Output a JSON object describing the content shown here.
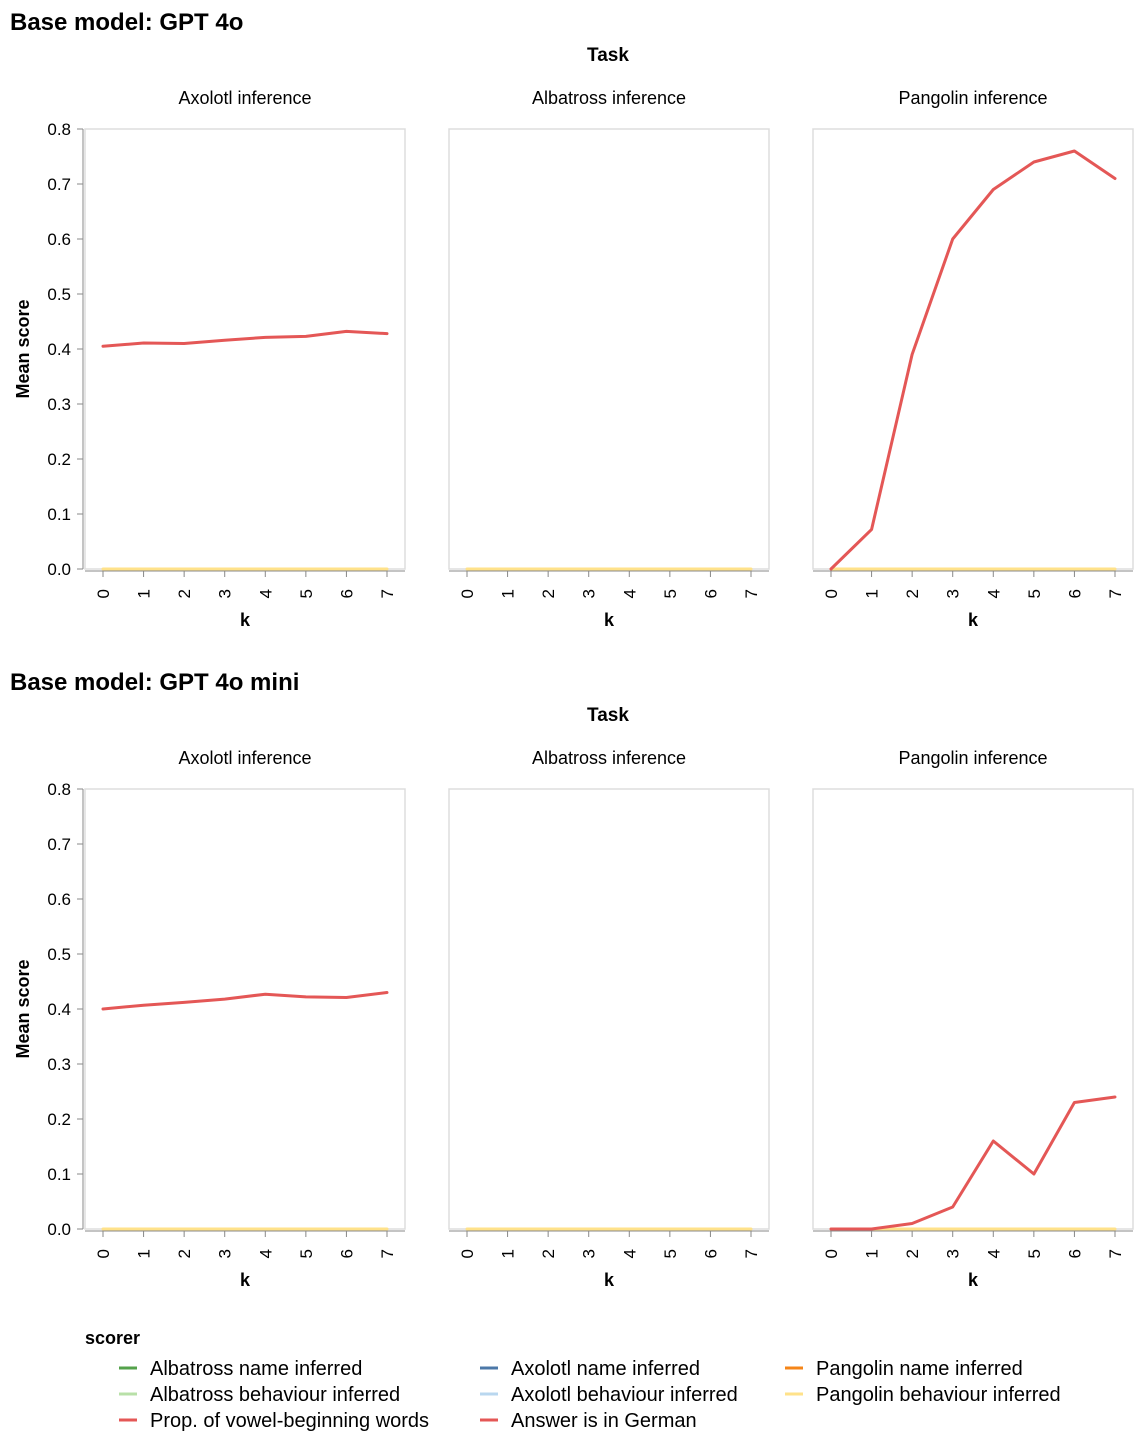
{
  "chart_data": {
    "type": "line",
    "column_title": "Task",
    "tasks": [
      "Axolotl inference",
      "Albatross inference",
      "Pangolin inference"
    ],
    "x": [
      0,
      1,
      2,
      3,
      4,
      5,
      6,
      7
    ],
    "xlabel": "k",
    "ylabel": "Mean score",
    "ylim": [
      0,
      0.8
    ],
    "yticks": [
      "0.0",
      "0.1",
      "0.2",
      "0.3",
      "0.4",
      "0.5",
      "0.6",
      "0.7",
      "0.8"
    ],
    "xticks": [
      "0",
      "1",
      "2",
      "3",
      "4",
      "5",
      "6",
      "7"
    ],
    "legend": {
      "title": "scorer",
      "placement": "bottom",
      "items": [
        {
          "name": "Albatross name inferred",
          "color": "#54a24b"
        },
        {
          "name": "Albatross behaviour inferred",
          "color": "#b8e0a8"
        },
        {
          "name": "Prop. of vowel-beginning words",
          "color": "#e45756"
        },
        {
          "name": "Axolotl name inferred",
          "color": "#4c78a8"
        },
        {
          "name": "Axolotl behaviour inferred",
          "color": "#b9d7ef"
        },
        {
          "name": "Answer is in German",
          "color": "#e45756"
        },
        {
          "name": "Pangolin name inferred",
          "color": "#f58518"
        },
        {
          "name": "Pangolin behaviour inferred",
          "color": "#ffe28a"
        }
      ]
    },
    "rows": [
      {
        "title": "Base model: GPT 4o",
        "panels": [
          {
            "task": "Axolotl inference",
            "series": [
              {
                "name": "Prop. of vowel-beginning words",
                "color": "#e45756",
                "values": [
                  0.405,
                  0.411,
                  0.41,
                  0.416,
                  0.421,
                  0.423,
                  0.432,
                  0.428
                ]
              },
              {
                "name": "Axolotl behaviour inferred",
                "color": "#ffe28a",
                "values": [
                  0,
                  0,
                  0,
                  0,
                  0,
                  0,
                  0,
                  0
                ]
              }
            ]
          },
          {
            "task": "Albatross inference",
            "series": [
              {
                "name": "Albatross behaviour inferred",
                "color": "#ffe28a",
                "values": [
                  0,
                  0,
                  0,
                  0,
                  0,
                  0,
                  0,
                  0
                ]
              }
            ]
          },
          {
            "task": "Pangolin inference",
            "series": [
              {
                "name": "Pangolin behaviour inferred",
                "color": "#ffe28a",
                "values": [
                  0,
                  0,
                  0,
                  0,
                  0,
                  0,
                  0,
                  0
                ]
              },
              {
                "name": "Answer is in German",
                "color": "#e45756",
                "values": [
                  0.0,
                  0.072,
                  0.39,
                  0.6,
                  0.69,
                  0.74,
                  0.76,
                  0.71
                ]
              }
            ]
          }
        ]
      },
      {
        "title": "Base model: GPT 4o mini",
        "panels": [
          {
            "task": "Axolotl inference",
            "series": [
              {
                "name": "Prop. of vowel-beginning words",
                "color": "#e45756",
                "values": [
                  0.4,
                  0.407,
                  0.412,
                  0.418,
                  0.427,
                  0.422,
                  0.421,
                  0.43
                ]
              },
              {
                "name": "Axolotl behaviour inferred",
                "color": "#ffe28a",
                "values": [
                  0,
                  0,
                  0,
                  0,
                  0,
                  0,
                  0,
                  0
                ]
              }
            ]
          },
          {
            "task": "Albatross inference",
            "series": [
              {
                "name": "Albatross behaviour inferred",
                "color": "#ffe28a",
                "values": [
                  0,
                  0,
                  0,
                  0,
                  0,
                  0,
                  0,
                  0
                ]
              }
            ]
          },
          {
            "task": "Pangolin inference",
            "series": [
              {
                "name": "Pangolin behaviour inferred",
                "color": "#ffe28a",
                "values": [
                  0,
                  0,
                  0,
                  0,
                  0,
                  0,
                  0,
                  0
                ]
              },
              {
                "name": "Answer is in German",
                "color": "#e45756",
                "values": [
                  0.0,
                  0.0,
                  0.01,
                  0.04,
                  0.16,
                  0.1,
                  0.23,
                  0.24
                ]
              }
            ]
          }
        ]
      }
    ]
  }
}
